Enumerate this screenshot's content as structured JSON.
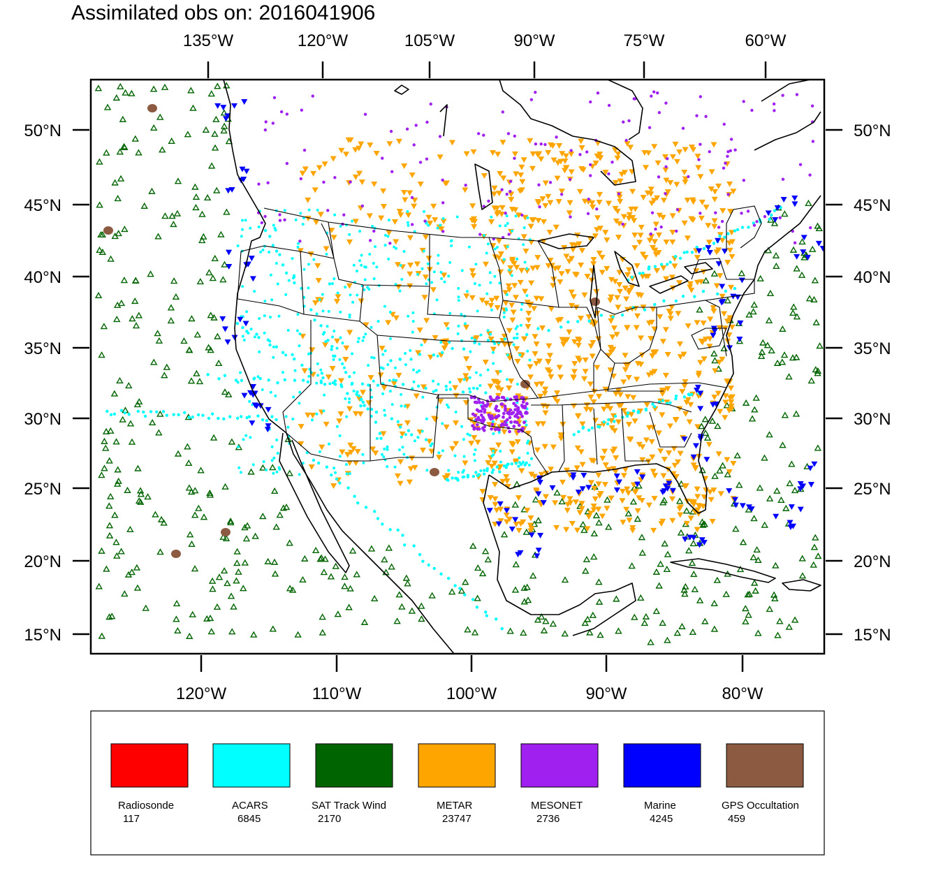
{
  "title": "Assimilated obs on: 2016041906",
  "top_lon_labels": [
    "135°W",
    "120°W",
    "105°W",
    "90°W",
    "75°W",
    "60°W"
  ],
  "bottom_lon_labels": [
    "120°W",
    "110°W",
    "100°W",
    "90°W",
    "80°W"
  ],
  "lat_labels": [
    "50°N",
    "45°N",
    "40°N",
    "35°N",
    "30°N",
    "25°N",
    "20°N",
    "15°N"
  ],
  "legend": [
    {
      "label": "Radiosonde",
      "count": "117",
      "color": "#ff0000"
    },
    {
      "label": "ACARS",
      "count": "6845",
      "color": "#00ffff"
    },
    {
      "label": "SAT Track Wind",
      "count": "2170",
      "color": "#006400"
    },
    {
      "label": "METAR",
      "count": "23747",
      "color": "#ffa500"
    },
    {
      "label": "MESONET",
      "count": "2736",
      "color": "#a020f0"
    },
    {
      "label": "Marine",
      "count": "4245",
      "color": "#0000ff"
    },
    {
      "label": "GPS Occultation",
      "count": "459",
      "color": "#8b5a40"
    }
  ]
}
